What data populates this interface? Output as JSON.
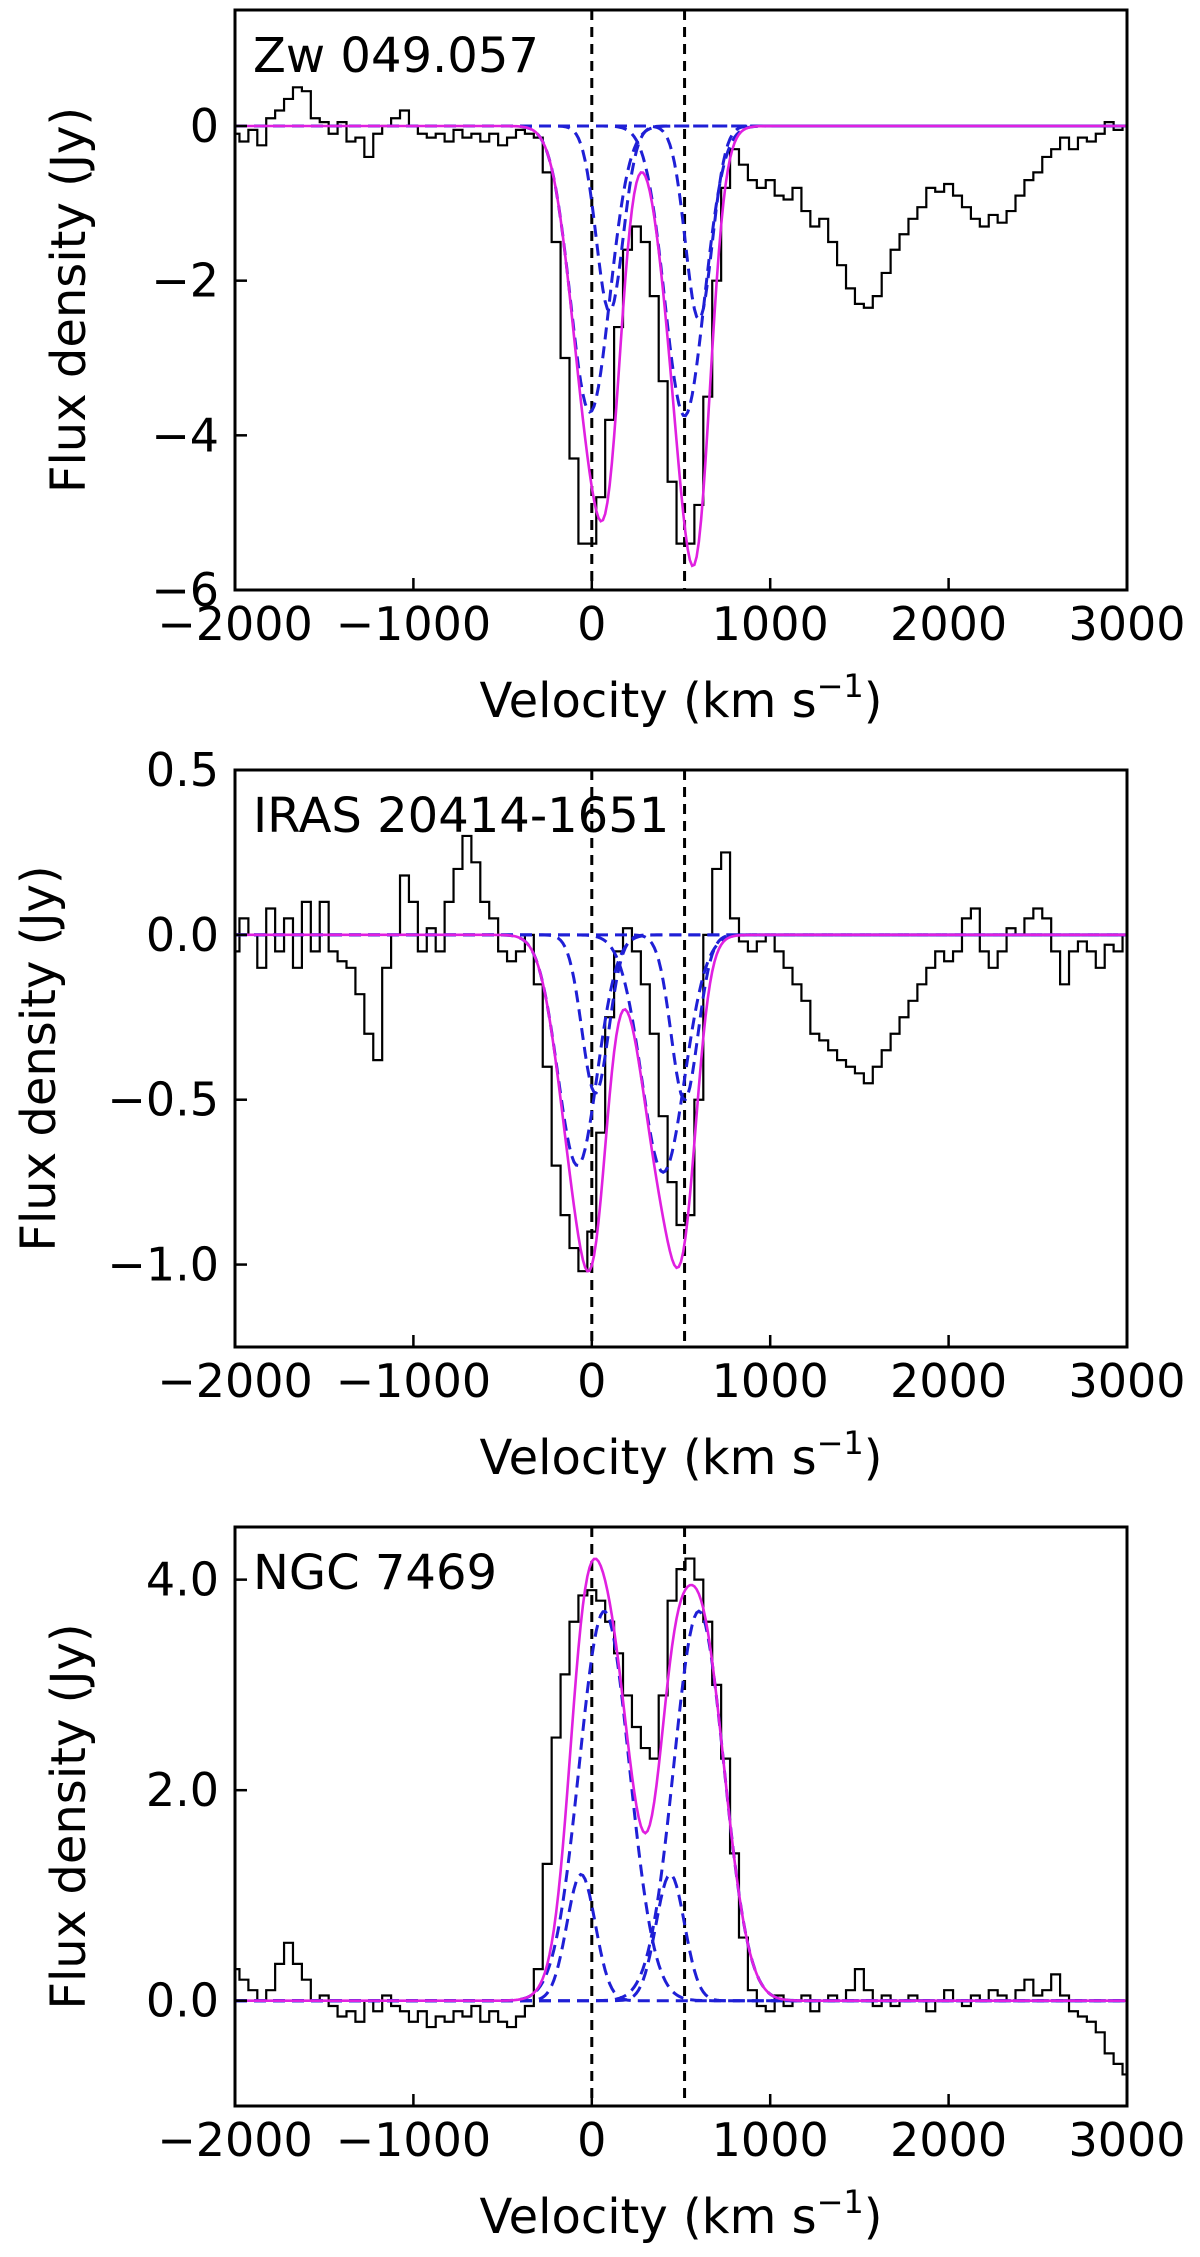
{
  "chart_data": [
    {
      "type": "line",
      "title": "Zw 049.057",
      "xlabel": "Velocity (km s",
      "xlabel_sup": "−1",
      "xlabel_close": ")",
      "ylabel": "Flux density (Jy)",
      "xlim": [
        -2000,
        3000
      ],
      "ylim": [
        -6,
        1.5
      ],
      "xticks": [
        -2000,
        -1000,
        0,
        1000,
        2000,
        3000
      ],
      "xtick_labels": [
        "−2000",
        "−1000",
        "0",
        "1000",
        "2000",
        "3000"
      ],
      "yticks": [
        0,
        -2,
        -4,
        -6
      ],
      "ytick_labels": [
        "0",
        "−2",
        "−4",
        "−6"
      ],
      "vlines": [
        0,
        520
      ],
      "baseline": 0,
      "components": [
        {
          "amp": -3.7,
          "center": -10,
          "sigma": 110
        },
        {
          "amp": -2.4,
          "center": 100,
          "sigma": 75
        },
        {
          "amp": -3.75,
          "center": 520,
          "sigma": 110
        },
        {
          "amp": -2.5,
          "center": 600,
          "sigma": 75
        }
      ],
      "spectrum": {
        "x": [
          -2000,
          -1950,
          -1900,
          -1850,
          -1800,
          -1750,
          -1700,
          -1650,
          -1600,
          -1550,
          -1500,
          -1450,
          -1400,
          -1350,
          -1300,
          -1250,
          -1200,
          -1150,
          -1100,
          -1050,
          -1000,
          -950,
          -900,
          -850,
          -800,
          -750,
          -700,
          -650,
          -600,
          -550,
          -500,
          -450,
          -400,
          -350,
          -300,
          -250,
          -200,
          -150,
          -100,
          -50,
          0,
          50,
          100,
          150,
          200,
          250,
          300,
          350,
          400,
          450,
          500,
          550,
          600,
          650,
          700,
          750,
          800,
          850,
          900,
          950,
          1000,
          1050,
          1100,
          1150,
          1200,
          1250,
          1300,
          1350,
          1400,
          1450,
          1500,
          1550,
          1600,
          1650,
          1700,
          1750,
          1800,
          1850,
          1900,
          1950,
          2000,
          2050,
          2100,
          2150,
          2200,
          2250,
          2300,
          2350,
          2400,
          2450,
          2500,
          2550,
          2600,
          2650,
          2700,
          2750,
          2800,
          2850,
          2900,
          2950,
          3000
        ],
        "y": [
          -0.1,
          -0.2,
          -0.05,
          -0.25,
          0.1,
          0.2,
          0.35,
          0.5,
          0.45,
          0.1,
          0.05,
          -0.1,
          0.05,
          -0.2,
          -0.15,
          -0.4,
          -0.1,
          0.0,
          0.1,
          0.2,
          0.0,
          -0.1,
          -0.15,
          -0.1,
          -0.2,
          -0.05,
          -0.15,
          -0.1,
          -0.2,
          -0.1,
          -0.25,
          -0.15,
          -0.05,
          -0.1,
          -0.15,
          -0.6,
          -1.5,
          -3.0,
          -4.3,
          -5.4,
          -5.4,
          -4.8,
          -3.8,
          -2.6,
          -1.6,
          -1.3,
          -1.5,
          -2.2,
          -3.3,
          -4.6,
          -5.4,
          -5.4,
          -4.9,
          -3.5,
          -2.0,
          -0.8,
          -0.3,
          -0.5,
          -0.7,
          -0.8,
          -0.7,
          -0.9,
          -0.95,
          -0.8,
          -1.1,
          -1.3,
          -1.2,
          -1.5,
          -1.8,
          -2.1,
          -2.3,
          -2.35,
          -2.2,
          -1.9,
          -1.6,
          -1.4,
          -1.2,
          -1.05,
          -0.8,
          -0.85,
          -0.75,
          -0.9,
          -1.05,
          -1.2,
          -1.3,
          -1.15,
          -1.25,
          -1.1,
          -0.9,
          -0.7,
          -0.6,
          -0.4,
          -0.3,
          -0.15,
          -0.3,
          -0.15,
          -0.2,
          -0.1,
          0.05,
          -0.05,
          0.0
        ]
      }
    },
    {
      "type": "line",
      "title": "IRAS 20414-1651",
      "xlabel": "Velocity (km s",
      "xlabel_sup": "−1",
      "xlabel_close": ")",
      "ylabel": "Flux density (Jy)",
      "xlim": [
        -2000,
        3000
      ],
      "ylim": [
        -1.25,
        0.5
      ],
      "xticks": [
        -2000,
        -1000,
        0,
        1000,
        2000,
        3000
      ],
      "xtick_labels": [
        "−2000",
        "−1000",
        "0",
        "1000",
        "2000",
        "3000"
      ],
      "yticks": [
        0.5,
        0.0,
        -0.5,
        -1.0
      ],
      "ytick_labels": [
        "0.5",
        "0.0",
        "−0.5",
        "−1.0"
      ],
      "vlines": [
        0,
        520
      ],
      "baseline": 0,
      "components": [
        {
          "amp": -0.7,
          "center": -80,
          "sigma": 110
        },
        {
          "amp": -0.48,
          "center": 20,
          "sigma": 75
        },
        {
          "amp": -0.72,
          "center": 400,
          "sigma": 120
        },
        {
          "amp": -0.5,
          "center": 520,
          "sigma": 75
        }
      ],
      "spectrum": {
        "x": [
          -2000,
          -1950,
          -1900,
          -1850,
          -1800,
          -1750,
          -1700,
          -1650,
          -1600,
          -1550,
          -1500,
          -1450,
          -1400,
          -1350,
          -1300,
          -1250,
          -1200,
          -1150,
          -1100,
          -1050,
          -1000,
          -950,
          -900,
          -850,
          -800,
          -750,
          -700,
          -650,
          -600,
          -550,
          -500,
          -450,
          -400,
          -350,
          -300,
          -250,
          -200,
          -150,
          -100,
          -50,
          0,
          50,
          100,
          150,
          200,
          250,
          300,
          350,
          400,
          450,
          500,
          550,
          600,
          650,
          700,
          750,
          800,
          850,
          900,
          950,
          1000,
          1050,
          1100,
          1150,
          1200,
          1250,
          1300,
          1350,
          1400,
          1450,
          1500,
          1550,
          1600,
          1650,
          1700,
          1750,
          1800,
          1850,
          1900,
          1950,
          2000,
          2050,
          2100,
          2150,
          2200,
          2250,
          2300,
          2350,
          2400,
          2450,
          2500,
          2550,
          2600,
          2650,
          2700,
          2750,
          2800,
          2850,
          2900,
          2950,
          3000
        ],
        "y": [
          -0.05,
          0.05,
          0.0,
          -0.1,
          0.08,
          -0.05,
          0.05,
          -0.1,
          0.1,
          -0.05,
          0.1,
          -0.05,
          -0.08,
          -0.1,
          -0.18,
          -0.3,
          -0.38,
          -0.1,
          0.0,
          0.18,
          0.1,
          -0.05,
          0.02,
          -0.05,
          0.1,
          0.2,
          0.3,
          0.22,
          0.1,
          0.05,
          -0.05,
          -0.08,
          -0.05,
          0.0,
          -0.15,
          -0.4,
          -0.7,
          -0.85,
          -0.95,
          -1.02,
          -0.9,
          -0.6,
          -0.25,
          -0.05,
          0.02,
          -0.05,
          -0.15,
          -0.3,
          -0.55,
          -0.75,
          -0.88,
          -0.85,
          -0.5,
          0.0,
          0.2,
          0.25,
          0.05,
          -0.02,
          -0.05,
          -0.02,
          0.0,
          -0.05,
          -0.1,
          -0.15,
          -0.2,
          -0.3,
          -0.32,
          -0.35,
          -0.38,
          -0.4,
          -0.42,
          -0.45,
          -0.4,
          -0.35,
          -0.3,
          -0.25,
          -0.2,
          -0.15,
          -0.1,
          -0.05,
          -0.08,
          -0.05,
          0.05,
          0.08,
          -0.05,
          -0.1,
          -0.05,
          0.02,
          0.0,
          0.05,
          0.08,
          0.05,
          -0.05,
          -0.15,
          -0.05,
          -0.02,
          -0.05,
          -0.1,
          -0.03,
          -0.05,
          0.0
        ]
      }
    },
    {
      "type": "line",
      "title": "NGC 7469",
      "xlabel": "Velocity (km s",
      "xlabel_sup": "−1",
      "xlabel_close": ")",
      "ylabel": "Flux density (Jy)",
      "xlim": [
        -2000,
        3000
      ],
      "ylim": [
        -1.0,
        4.5
      ],
      "xticks": [
        -2000,
        -1000,
        0,
        1000,
        2000,
        3000
      ],
      "xtick_labels": [
        "−2000",
        "−1000",
        "0",
        "1000",
        "2000",
        "3000"
      ],
      "yticks": [
        4.0,
        2.0,
        0.0
      ],
      "ytick_labels": [
        "4.0",
        "2.0",
        "0.0"
      ],
      "vlines": [
        0,
        520
      ],
      "baseline": 0,
      "components": [
        {
          "amp": 1.2,
          "center": -60,
          "sigma": 80
        },
        {
          "amp": 3.7,
          "center": 70,
          "sigma": 140
        },
        {
          "amp": 1.2,
          "center": 440,
          "sigma": 80
        },
        {
          "amp": 3.7,
          "center": 600,
          "sigma": 140
        }
      ],
      "spectrum": {
        "x": [
          -2000,
          -1950,
          -1900,
          -1850,
          -1800,
          -1750,
          -1700,
          -1650,
          -1600,
          -1550,
          -1500,
          -1450,
          -1400,
          -1350,
          -1300,
          -1250,
          -1200,
          -1150,
          -1100,
          -1050,
          -1000,
          -950,
          -900,
          -850,
          -800,
          -750,
          -700,
          -650,
          -600,
          -550,
          -500,
          -450,
          -400,
          -350,
          -300,
          -250,
          -200,
          -150,
          -100,
          -50,
          0,
          50,
          100,
          150,
          200,
          250,
          300,
          350,
          400,
          450,
          500,
          550,
          600,
          650,
          700,
          750,
          800,
          850,
          900,
          950,
          1000,
          1050,
          1100,
          1150,
          1200,
          1250,
          1300,
          1350,
          1400,
          1450,
          1500,
          1550,
          1600,
          1650,
          1700,
          1750,
          1800,
          1850,
          1900,
          1950,
          2000,
          2050,
          2100,
          2150,
          2200,
          2250,
          2300,
          2350,
          2400,
          2450,
          2500,
          2550,
          2600,
          2650,
          2700,
          2750,
          2800,
          2850,
          2900,
          2950,
          3000
        ],
        "y": [
          0.3,
          0.2,
          0.1,
          0.0,
          0.1,
          0.35,
          0.55,
          0.35,
          0.2,
          0.0,
          0.05,
          -0.05,
          -0.15,
          -0.1,
          -0.2,
          0.0,
          -0.1,
          0.05,
          -0.05,
          -0.1,
          -0.2,
          -0.1,
          -0.25,
          -0.15,
          -0.2,
          -0.1,
          -0.15,
          -0.05,
          -0.2,
          -0.1,
          -0.2,
          -0.25,
          -0.15,
          -0.05,
          0.3,
          1.3,
          2.5,
          3.1,
          3.6,
          3.85,
          3.9,
          3.8,
          3.6,
          3.3,
          2.9,
          2.6,
          2.4,
          2.3,
          2.9,
          3.8,
          4.1,
          4.2,
          4.0,
          3.6,
          3.0,
          2.3,
          1.4,
          0.6,
          0.1,
          -0.05,
          -0.1,
          0.05,
          -0.05,
          0.0,
          0.05,
          -0.1,
          0.0,
          0.05,
          0.0,
          0.1,
          0.3,
          0.1,
          -0.05,
          0.05,
          -0.05,
          0.0,
          0.05,
          0.0,
          -0.1,
          0.0,
          0.1,
          0.0,
          -0.05,
          0.05,
          0.0,
          0.1,
          0.05,
          0.0,
          0.1,
          0.2,
          0.05,
          0.1,
          0.25,
          0.05,
          -0.1,
          -0.15,
          -0.2,
          -0.3,
          -0.5,
          -0.6,
          -0.7
        ]
      }
    }
  ],
  "colors": {
    "spectrum": "#000000",
    "total_fit": "#e020e0",
    "components": "#1f1fd6",
    "vline": "#000000"
  }
}
